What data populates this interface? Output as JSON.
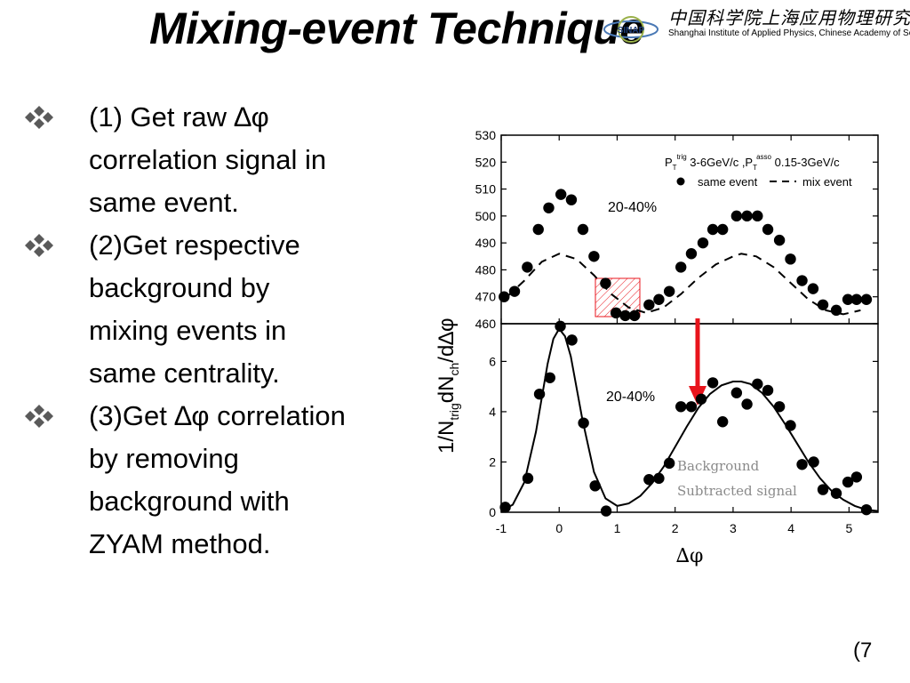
{
  "slide": {
    "title": "Mixing-event Technique",
    "page_number": "(7"
  },
  "logo": {
    "chinese_text": "中国科学院上海应用物理研究所",
    "english_text": "Shanghai Institute of Applied Physics, Chinese Academy of Sciences",
    "emblem_text": "SINAP"
  },
  "bullets": [
    {
      "lines": [
        "(1) Get raw ∆φ",
        "correlation signal in",
        "same event."
      ]
    },
    {
      "lines": [
        "(2)Get respective",
        "background by",
        "mixing events in",
        "same centrality."
      ]
    },
    {
      "lines": [
        "(3)Get ∆φ correlation",
        "by removing",
        "background with",
        "ZYAM method."
      ]
    }
  ],
  "colors": {
    "bullet": "#5a5a5a",
    "arrow": "#e8141c",
    "box": "#e8141c",
    "annotation": "#8a8a8a"
  },
  "chart_data": [
    {
      "type": "scatter",
      "panel": "top",
      "ylim": [
        460,
        530
      ],
      "xlim": [
        -1,
        5.5
      ],
      "yticks": [
        "460",
        "470",
        "480",
        "490",
        "500",
        "510",
        "520",
        "530"
      ],
      "legend_title_parts": {
        "p": "P",
        "t": "T",
        "trig": "trig",
        "mid": " 3-6GeV/c ,P",
        "asso": "asso",
        "tail": " 0.15-3GeV/c"
      },
      "legend_entries": [
        "same event",
        "mix event"
      ],
      "legend_position": "top-right",
      "annotation": "20-40%",
      "series": [
        {
          "name": "same event",
          "x": [
            -0.95,
            -0.77,
            -0.55,
            -0.36,
            -0.18,
            0.03,
            0.21,
            0.41,
            0.6,
            0.8,
            0.98,
            1.14,
            1.3,
            1.55,
            1.72,
            1.9,
            2.1,
            2.28,
            2.48,
            2.65,
            2.82,
            3.06,
            3.24,
            3.42,
            3.6,
            3.8,
            3.99,
            4.19,
            4.38,
            4.55,
            4.78,
            4.98,
            5.13,
            5.3
          ],
          "y": [
            470,
            472,
            481,
            495,
            503,
            508,
            506,
            495,
            485,
            475,
            464,
            463,
            463,
            467,
            469,
            472,
            481,
            486,
            490,
            495,
            495,
            500,
            500,
            500,
            495,
            491,
            484,
            476,
            473,
            467,
            465,
            469,
            469,
            469
          ]
        },
        {
          "name": "mix event",
          "x": [
            -0.9,
            -0.6,
            -0.3,
            0.0,
            0.3,
            0.6,
            0.9,
            1.2,
            1.5,
            1.8,
            2.1,
            2.4,
            2.7,
            3.0,
            3.14,
            3.4,
            3.7,
            4.0,
            4.3,
            4.6,
            4.9,
            5.2
          ],
          "y": [
            470,
            476,
            483,
            486,
            484,
            478,
            471,
            466,
            464,
            466,
            471,
            477,
            482,
            485,
            486,
            485,
            481,
            475,
            469,
            465,
            463.5,
            465
          ]
        }
      ]
    },
    {
      "type": "scatter",
      "panel": "bottom",
      "ylim": [
        0,
        7.5
      ],
      "xlim": [
        -1,
        5.5
      ],
      "yticks": [
        "0",
        "2",
        "4",
        "6"
      ],
      "xticks": [
        "-1",
        "0",
        "1",
        "2",
        "3",
        "4",
        "5"
      ],
      "xlabel": "∆φ",
      "ylabel_parts": {
        "a": "1/N",
        "b": "trig",
        "c": "dN",
        "d": "ch",
        "e": "/d∆φ"
      },
      "annotation": "20-40%",
      "annotation2": [
        "Background",
        "Subtracted  signal"
      ],
      "series": [
        {
          "name": "points",
          "x": [
            -0.93,
            -0.54,
            -0.34,
            -0.16,
            0.02,
            0.22,
            0.42,
            0.62,
            0.81,
            1.55,
            1.72,
            1.9,
            2.1,
            2.28,
            2.45,
            2.65,
            2.82,
            3.06,
            3.24,
            3.42,
            3.6,
            3.8,
            3.99,
            4.19,
            4.39,
            4.55,
            4.78,
            4.98,
            5.13,
            5.3
          ],
          "y": [
            0.2,
            1.35,
            4.7,
            5.35,
            7.4,
            6.85,
            3.55,
            1.05,
            0.05,
            1.3,
            1.35,
            1.95,
            4.2,
            4.2,
            4.5,
            5.15,
            3.6,
            4.75,
            4.3,
            5.1,
            4.85,
            4.2,
            3.45,
            1.9,
            2.0,
            0.9,
            0.75,
            1.2,
            1.4,
            0.1
          ]
        },
        {
          "name": "fit",
          "x": [
            -1.0,
            -0.8,
            -0.6,
            -0.4,
            -0.2,
            -0.1,
            0.0,
            0.1,
            0.2,
            0.4,
            0.6,
            0.8,
            1.0,
            1.2,
            1.4,
            1.6,
            1.8,
            2.0,
            2.2,
            2.4,
            2.6,
            2.8,
            3.0,
            3.14,
            3.3,
            3.5,
            3.7,
            3.9,
            4.1,
            4.3,
            4.5,
            4.7,
            4.9,
            5.1,
            5.3,
            5.5
          ],
          "y": [
            0.05,
            0.3,
            1.2,
            3.2,
            5.9,
            6.9,
            7.3,
            7.0,
            6.2,
            3.7,
            1.6,
            0.55,
            0.25,
            0.35,
            0.65,
            1.15,
            1.8,
            2.6,
            3.4,
            4.15,
            4.7,
            5.05,
            5.2,
            5.2,
            5.1,
            4.75,
            4.2,
            3.5,
            2.75,
            2.0,
            1.35,
            0.85,
            0.5,
            0.25,
            0.1,
            0.05
          ]
        }
      ]
    }
  ]
}
